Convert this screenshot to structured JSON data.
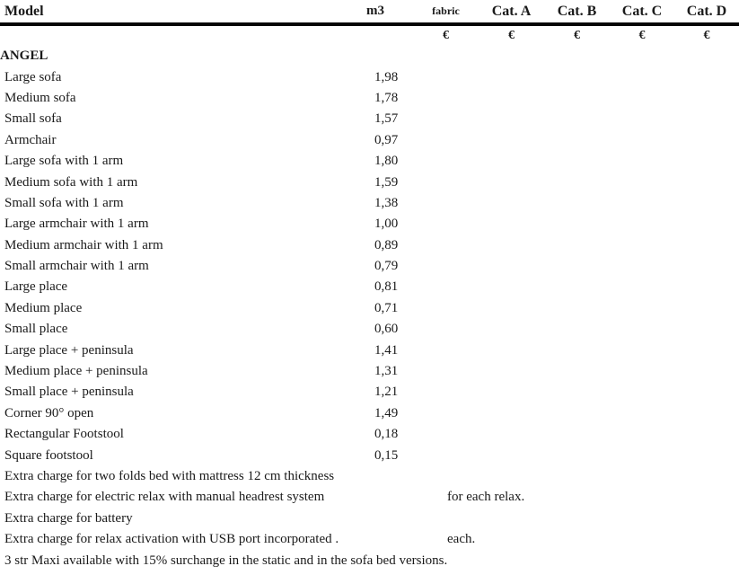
{
  "table": {
    "columns": [
      "Model",
      "m3",
      "fabric",
      "Cat. A",
      "Cat. B",
      "Cat. C",
      "Cat. D"
    ],
    "currency_symbol": "€",
    "section_title": "ANGEL",
    "rows": [
      {
        "model": "Large sofa",
        "m3": "1,98"
      },
      {
        "model": "Medium sofa",
        "m3": "1,78"
      },
      {
        "model": "Small sofa",
        "m3": "1,57"
      },
      {
        "model": "Armchair",
        "m3": "0,97"
      },
      {
        "model": "Large sofa with 1 arm",
        "m3": "1,80"
      },
      {
        "model": "Medium sofa with 1 arm",
        "m3": "1,59"
      },
      {
        "model": "Small sofa with 1 arm",
        "m3": "1,38"
      },
      {
        "model": "Large armchair with 1 arm",
        "m3": "1,00"
      },
      {
        "model": "Medium armchair with 1 arm",
        "m3": "0,89"
      },
      {
        "model": "Small armchair with 1 arm",
        "m3": "0,79"
      },
      {
        "model": "Large place",
        "m3": "0,81"
      },
      {
        "model": "Medium place",
        "m3": "0,71"
      },
      {
        "model": "Small place",
        "m3": "0,60"
      },
      {
        "model": "Large place + peninsula",
        "m3": "1,41"
      },
      {
        "model": "Medium place + peninsula",
        "m3": "1,31"
      },
      {
        "model": "Small place + peninsula",
        "m3": "1,21"
      },
      {
        "model": "Corner 90° open",
        "m3": "1,49"
      },
      {
        "model": "Rectangular Footstool",
        "m3": "0,18"
      },
      {
        "model": "Square footstool",
        "m3": "0,15"
      }
    ],
    "notes": [
      {
        "text": "Extra charge for two folds bed with mattress 12 cm thickness",
        "suffix": ""
      },
      {
        "text": "Extra charge for electric relax with manual headrest system",
        "suffix": "for each relax."
      },
      {
        "text": "Extra charge for battery",
        "suffix": ""
      },
      {
        "text": "Extra charge for relax activation with USB port incorporated .",
        "suffix": "each."
      },
      {
        "text": "3 str Maxi available with 15% surchange in the static and in the sofa bed versions.",
        "suffix": ""
      }
    ]
  }
}
